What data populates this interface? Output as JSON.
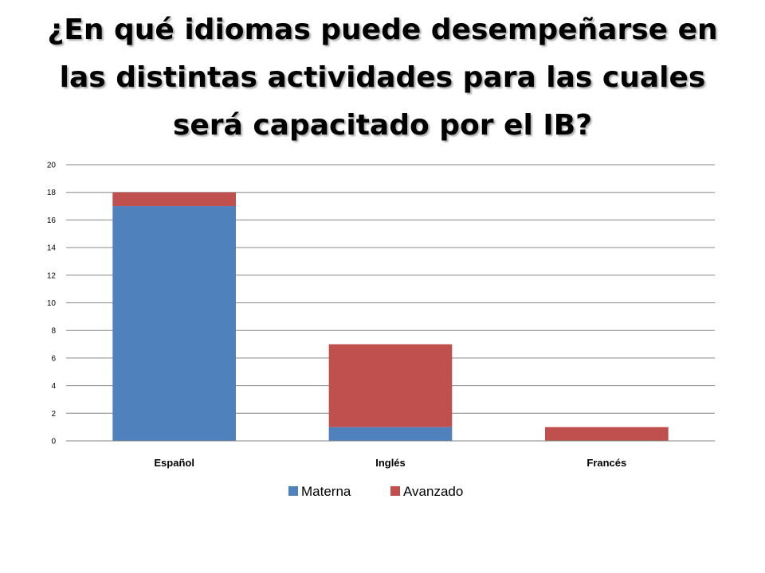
{
  "slide": {
    "title": "¿En qué idiomas puede desempeñarse en las distintas actividades para las cuales será capacitado por el IB?"
  },
  "chart_data": {
    "type": "bar",
    "stacked": true,
    "categories": [
      "Español",
      "Inglés",
      "Francés"
    ],
    "series": [
      {
        "name": "Materna",
        "values": [
          17,
          1,
          0
        ],
        "color": "#4F81BD"
      },
      {
        "name": "Avanzado",
        "values": [
          1,
          6,
          1
        ],
        "color": "#C0504D"
      }
    ],
    "ylim": [
      0,
      20
    ],
    "ytick_step": 2,
    "yticks": [
      "0",
      "2",
      "4",
      "6",
      "8",
      "10",
      "12",
      "14",
      "16",
      "18",
      "20"
    ],
    "grid": true,
    "legend_position": "bottom",
    "title": "",
    "xlabel": "",
    "ylabel": ""
  }
}
